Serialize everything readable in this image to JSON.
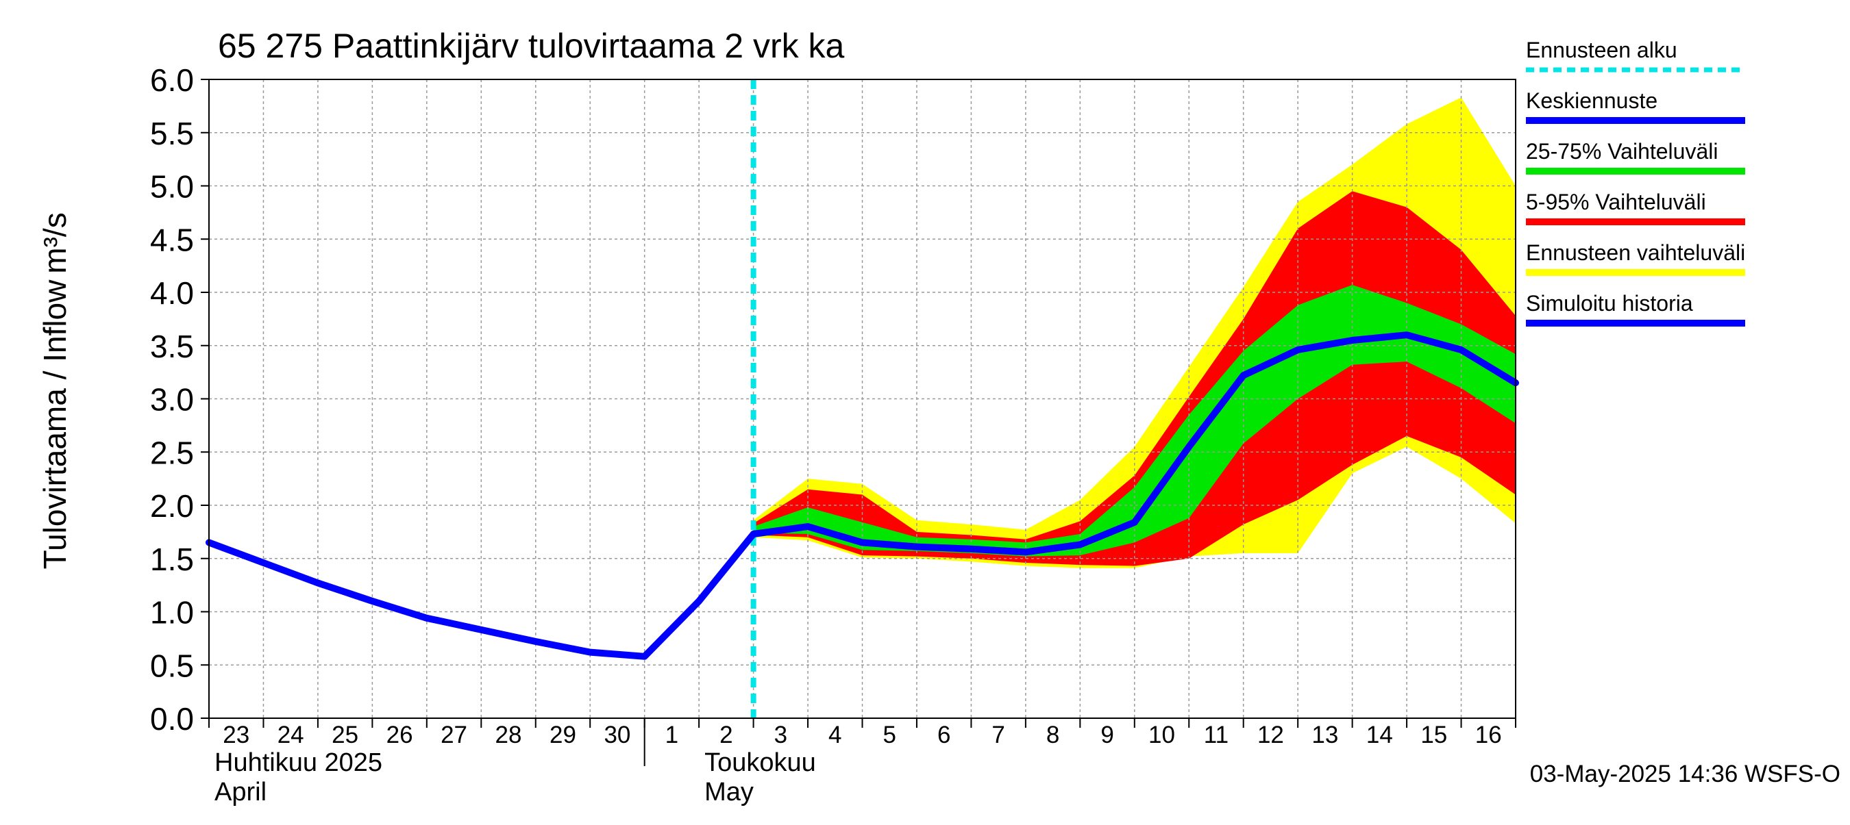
{
  "chart_data": {
    "type": "area",
    "title": "65 275 Paattinkijärv tulovirtaama 2 vrk ka",
    "ylabel": "Tulovirtaama / Inflow",
    "yunit": "m³/s",
    "ylim": [
      0,
      6.0
    ],
    "yticks": [
      "0.0",
      "0.5",
      "1.0",
      "1.5",
      "2.0",
      "2.5",
      "3.0",
      "3.5",
      "4.0",
      "4.5",
      "5.0",
      "5.5",
      "6.0"
    ],
    "grid": true,
    "x_start": "2025-04-23",
    "x_end": "2025-05-17",
    "xtick_labels": [
      "23",
      "24",
      "25",
      "26",
      "27",
      "28",
      "29",
      "30",
      "1",
      "2",
      "3",
      "4",
      "5",
      "6",
      "7",
      "8",
      "9",
      "10",
      "11",
      "12",
      "13",
      "14",
      "15",
      "16"
    ],
    "month_labels": [
      {
        "fi": "Huhtikuu  2025",
        "en": "April",
        "date": "2025-04-23"
      },
      {
        "fi": "Toukokuu",
        "en": "May",
        "date": "2025-05-01"
      }
    ],
    "forecast_start": "2025-05-03",
    "timestamp": "03-May-2025 14:36 WSFS-O",
    "legend_position": "right",
    "colors": {
      "forecast_start": "#00e5e5",
      "median": "#0000ff",
      "p25_75": "#00e600",
      "p5_95": "#ff0000",
      "full_range": "#ffff00",
      "history": "#0000ff",
      "grid": "#9a9a9a"
    },
    "legend": [
      {
        "label": "Ennusteen alku",
        "key": "forecast_start",
        "style": "dashed"
      },
      {
        "label": "Keskiennuste",
        "key": "median",
        "style": "line"
      },
      {
        "label": "25-75% Vaihteluväli",
        "key": "p25_75",
        "style": "line"
      },
      {
        "label": "5-95% Vaihteluväli",
        "key": "p5_95",
        "style": "line"
      },
      {
        "label": "Ennusteen vaihteluväli",
        "key": "full_range",
        "style": "line"
      },
      {
        "label": "Simuloitu historia",
        "key": "history",
        "style": "line"
      }
    ],
    "series": [
      {
        "key": "history",
        "points": [
          [
            "2025-04-23",
            1.65
          ],
          [
            "2025-04-24",
            1.46
          ],
          [
            "2025-04-25",
            1.27
          ],
          [
            "2025-04-26",
            1.1
          ],
          [
            "2025-04-27",
            0.94
          ],
          [
            "2025-04-28",
            0.83
          ],
          [
            "2025-04-29",
            0.72
          ],
          [
            "2025-04-30",
            0.62
          ],
          [
            "2025-05-01",
            0.58
          ],
          [
            "2025-05-02",
            1.1
          ],
          [
            "2025-05-03",
            1.73
          ]
        ]
      },
      {
        "key": "median",
        "points": [
          [
            "2025-05-03",
            1.73
          ],
          [
            "2025-05-04",
            1.8
          ],
          [
            "2025-05-05",
            1.65
          ],
          [
            "2025-05-06",
            1.61
          ],
          [
            "2025-05-07",
            1.59
          ],
          [
            "2025-05-08",
            1.56
          ],
          [
            "2025-05-09",
            1.63
          ],
          [
            "2025-05-10",
            1.84
          ],
          [
            "2025-05-11",
            2.55
          ],
          [
            "2025-05-12",
            3.22
          ],
          [
            "2025-05-13",
            3.46
          ],
          [
            "2025-05-14",
            3.55
          ],
          [
            "2025-05-15",
            3.6
          ],
          [
            "2025-05-16",
            3.46
          ],
          [
            "2025-05-17",
            3.15
          ]
        ]
      },
      {
        "key": "full_range",
        "upper": [
          [
            "2025-05-03",
            1.86
          ],
          [
            "2025-05-04",
            2.25
          ],
          [
            "2025-05-05",
            2.2
          ],
          [
            "2025-05-06",
            1.86
          ],
          [
            "2025-05-07",
            1.82
          ],
          [
            "2025-05-08",
            1.77
          ],
          [
            "2025-05-09",
            2.05
          ],
          [
            "2025-05-10",
            2.55
          ],
          [
            "2025-05-11",
            3.3
          ],
          [
            "2025-05-12",
            4.05
          ],
          [
            "2025-05-13",
            4.85
          ],
          [
            "2025-05-14",
            5.2
          ],
          [
            "2025-05-15",
            5.58
          ],
          [
            "2025-05-16",
            5.83
          ],
          [
            "2025-05-17",
            5.0
          ]
        ],
        "lower": [
          [
            "2025-05-03",
            1.7
          ],
          [
            "2025-05-04",
            1.67
          ],
          [
            "2025-05-05",
            1.51
          ],
          [
            "2025-05-06",
            1.5
          ],
          [
            "2025-05-07",
            1.47
          ],
          [
            "2025-05-08",
            1.43
          ],
          [
            "2025-05-09",
            1.41
          ],
          [
            "2025-05-10",
            1.41
          ],
          [
            "2025-05-11",
            1.52
          ],
          [
            "2025-05-12",
            1.55
          ],
          [
            "2025-05-13",
            1.55
          ],
          [
            "2025-05-14",
            2.3
          ],
          [
            "2025-05-15",
            2.55
          ],
          [
            "2025-05-16",
            2.25
          ],
          [
            "2025-05-17",
            1.83
          ]
        ]
      },
      {
        "key": "p5_95",
        "upper": [
          [
            "2025-05-03",
            1.83
          ],
          [
            "2025-05-04",
            2.15
          ],
          [
            "2025-05-05",
            2.1
          ],
          [
            "2025-05-06",
            1.75
          ],
          [
            "2025-05-07",
            1.72
          ],
          [
            "2025-05-08",
            1.68
          ],
          [
            "2025-05-09",
            1.85
          ],
          [
            "2025-05-10",
            2.28
          ],
          [
            "2025-05-11",
            3.02
          ],
          [
            "2025-05-12",
            3.75
          ],
          [
            "2025-05-13",
            4.6
          ],
          [
            "2025-05-14",
            4.95
          ],
          [
            "2025-05-15",
            4.8
          ],
          [
            "2025-05-16",
            4.4
          ],
          [
            "2025-05-17",
            3.78
          ]
        ],
        "lower": [
          [
            "2025-05-03",
            1.72
          ],
          [
            "2025-05-04",
            1.7
          ],
          [
            "2025-05-05",
            1.53
          ],
          [
            "2025-05-06",
            1.52
          ],
          [
            "2025-05-07",
            1.5
          ],
          [
            "2025-05-08",
            1.46
          ],
          [
            "2025-05-09",
            1.44
          ],
          [
            "2025-05-10",
            1.43
          ],
          [
            "2025-05-11",
            1.5
          ],
          [
            "2025-05-12",
            1.82
          ],
          [
            "2025-05-13",
            2.05
          ],
          [
            "2025-05-14",
            2.38
          ],
          [
            "2025-05-15",
            2.65
          ],
          [
            "2025-05-16",
            2.45
          ],
          [
            "2025-05-17",
            2.1
          ]
        ]
      },
      {
        "key": "p25_75",
        "upper": [
          [
            "2025-05-03",
            1.8
          ],
          [
            "2025-05-04",
            1.98
          ],
          [
            "2025-05-05",
            1.84
          ],
          [
            "2025-05-06",
            1.7
          ],
          [
            "2025-05-07",
            1.68
          ],
          [
            "2025-05-08",
            1.65
          ],
          [
            "2025-05-09",
            1.73
          ],
          [
            "2025-05-10",
            2.17
          ],
          [
            "2025-05-11",
            2.85
          ],
          [
            "2025-05-12",
            3.45
          ],
          [
            "2025-05-13",
            3.88
          ],
          [
            "2025-05-14",
            4.07
          ],
          [
            "2025-05-15",
            3.9
          ],
          [
            "2025-05-16",
            3.7
          ],
          [
            "2025-05-17",
            3.42
          ]
        ],
        "lower": [
          [
            "2025-05-03",
            1.74
          ],
          [
            "2025-05-04",
            1.73
          ],
          [
            "2025-05-05",
            1.58
          ],
          [
            "2025-05-06",
            1.57
          ],
          [
            "2025-05-07",
            1.55
          ],
          [
            "2025-05-08",
            1.52
          ],
          [
            "2025-05-09",
            1.53
          ],
          [
            "2025-05-10",
            1.65
          ],
          [
            "2025-05-11",
            1.88
          ],
          [
            "2025-05-12",
            2.58
          ],
          [
            "2025-05-13",
            3.0
          ],
          [
            "2025-05-14",
            3.32
          ],
          [
            "2025-05-15",
            3.35
          ],
          [
            "2025-05-16",
            3.1
          ],
          [
            "2025-05-17",
            2.77
          ]
        ]
      }
    ]
  }
}
